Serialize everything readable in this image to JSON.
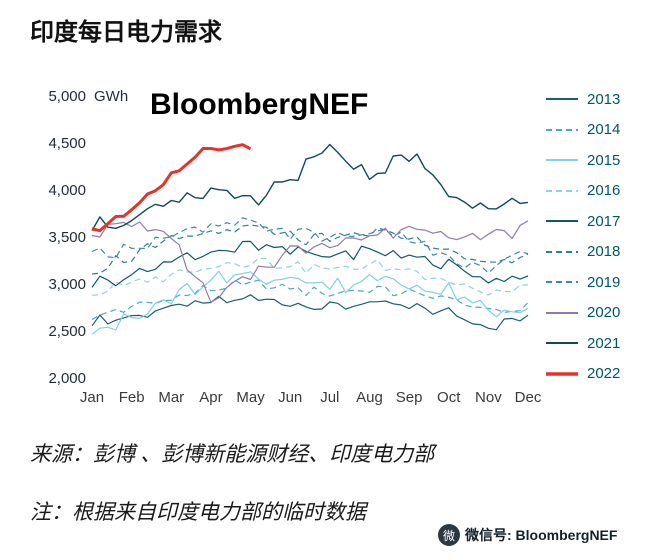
{
  "watermark": "BloombergNEF",
  "footer": {
    "source": "来源：彭博 、彭博新能源财经、印度电力部",
    "note": "注：根据来自印度电力部的临时数据",
    "wechat": "微信号: BloombergNEF",
    "wechat_icon": "微"
  },
  "chart_data": {
    "type": "line",
    "title": "印度每日电力需求",
    "x": [
      "Jan",
      "Feb",
      "Mar",
      "Apr",
      "May",
      "Jun",
      "Jul",
      "Aug",
      "Sep",
      "Oct",
      "Nov",
      "Dec"
    ],
    "ylim": [
      2000,
      5000
    ],
    "yticks": [
      2000,
      2500,
      3000,
      3500,
      4000,
      4500,
      5000
    ],
    "ytick_labels": [
      "2,000",
      "2,500",
      "3,000",
      "3,500",
      "4,000",
      "4,500",
      "5,000"
    ],
    "y_unit": "GWh",
    "grid": false,
    "legend_position": "right",
    "series": [
      {
        "name": "2013",
        "color": "#1b5e71",
        "style": "solid",
        "width": 1.2,
        "noise": 90,
        "values": [
          2600,
          2650,
          2750,
          2800,
          2850,
          2800,
          2750,
          2800,
          2750,
          2700,
          2550,
          2650
        ]
      },
      {
        "name": "2014",
        "color": "#4da7c4",
        "style": "dashed",
        "width": 1.2,
        "noise": 90,
        "values": [
          2650,
          2750,
          2850,
          2950,
          3000,
          2950,
          2900,
          2950,
          2900,
          2850,
          2700,
          2750
        ]
      },
      {
        "name": "2015",
        "color": "#7fd0e8",
        "style": "solid",
        "width": 1.2,
        "noise": 170,
        "values": [
          2550,
          2600,
          2850,
          3000,
          3100,
          3050,
          3000,
          3050,
          3000,
          2900,
          2700,
          2750
        ]
      },
      {
        "name": "2016",
        "color": "#8fd2e6",
        "style": "dashed",
        "width": 1.2,
        "noise": 100,
        "values": [
          2900,
          3000,
          3100,
          3200,
          3250,
          3200,
          3150,
          3200,
          3150,
          3050,
          2900,
          2950
        ]
      },
      {
        "name": "2017",
        "color": "#10576b",
        "style": "solid",
        "width": 1.2,
        "noise": 110,
        "values": [
          3000,
          3100,
          3250,
          3350,
          3400,
          3350,
          3300,
          3350,
          3300,
          3200,
          3050,
          3100
        ]
      },
      {
        "name": "2018",
        "color": "#2e7f96",
        "style": "dashed",
        "width": 1.2,
        "noise": 110,
        "values": [
          3150,
          3300,
          3450,
          3550,
          3600,
          3500,
          3450,
          3550,
          3500,
          3350,
          3200,
          3300
        ]
      },
      {
        "name": "2019",
        "color": "#3c8aa6",
        "style": "dashed",
        "width": 1.2,
        "noise": 110,
        "values": [
          3300,
          3400,
          3500,
          3600,
          3650,
          3550,
          3500,
          3550,
          3500,
          3250,
          3150,
          3350
        ]
      },
      {
        "name": "2020",
        "color": "#8e7bb0",
        "style": "solid",
        "width": 1.2,
        "noise": 110,
        "values": [
          3550,
          3650,
          3500,
          2800,
          3100,
          3350,
          3450,
          3500,
          3600,
          3550,
          3500,
          3600
        ]
      },
      {
        "name": "2021",
        "color": "#0f4a57",
        "style": "solid",
        "width": 1.4,
        "noise": 130,
        "values": [
          3600,
          3700,
          3900,
          4000,
          3850,
          4100,
          4450,
          4150,
          4400,
          3950,
          3750,
          3900
        ]
      },
      {
        "name": "2022",
        "color": "#e63329",
        "style": "solid",
        "width": 3,
        "noise": 70,
        "values": [
          3550,
          3800,
          4150,
          4450,
          4480
        ]
      }
    ]
  }
}
